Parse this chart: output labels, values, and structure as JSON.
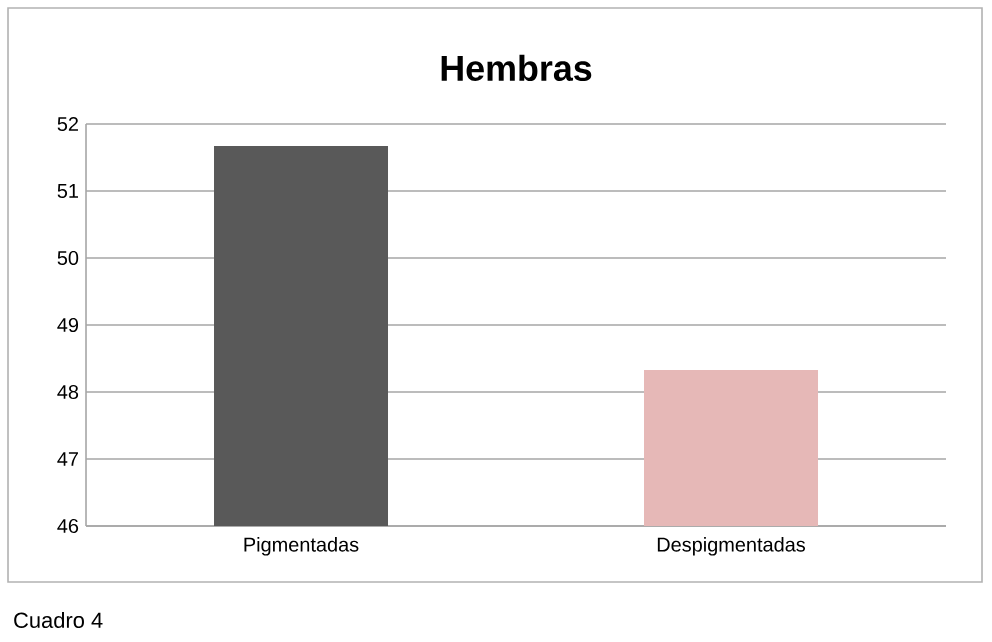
{
  "chart_data": {
    "type": "bar",
    "title": "Hembras",
    "categories": [
      "Pigmentadas",
      "Despigmentadas"
    ],
    "values": [
      51.67,
      48.33
    ],
    "colors": [
      "#595959",
      "#e6b8b7"
    ],
    "ylim": [
      46,
      52
    ],
    "yticks": [
      46,
      47,
      48,
      49,
      50,
      51,
      52
    ],
    "grid": "y",
    "annotations": [
      "Cuadro 4"
    ]
  }
}
